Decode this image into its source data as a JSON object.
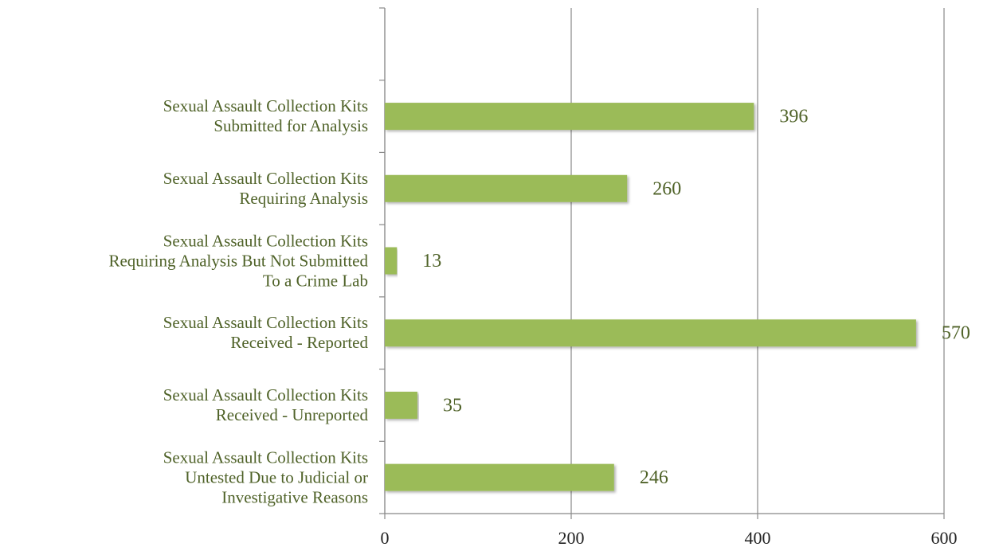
{
  "chart_data": {
    "type": "barh",
    "categories": [
      null,
      "Sexual Assault Collection Kits\nSubmitted for Analysis",
      "Sexual Assault Collection Kits\nRequiring Analysis",
      "Sexual Assault Collection Kits\nRequiring Analysis But Not Submitted\nTo a Crime Lab",
      "Sexual Assault Collection Kits\nReceived  -  Reported",
      "Sexual Assault Collection Kits\nReceived  -  Unreported",
      "Sexual Assault Collection Kits\nUntested Due to Judicial or\nInvestigative Reasons"
    ],
    "values": [
      null,
      396,
      260,
      13,
      570,
      35,
      246
    ],
    "color": "#9bbb59",
    "xlim": [
      0,
      600
    ],
    "xticks": [
      0,
      200,
      400,
      600
    ],
    "grid": true
  }
}
